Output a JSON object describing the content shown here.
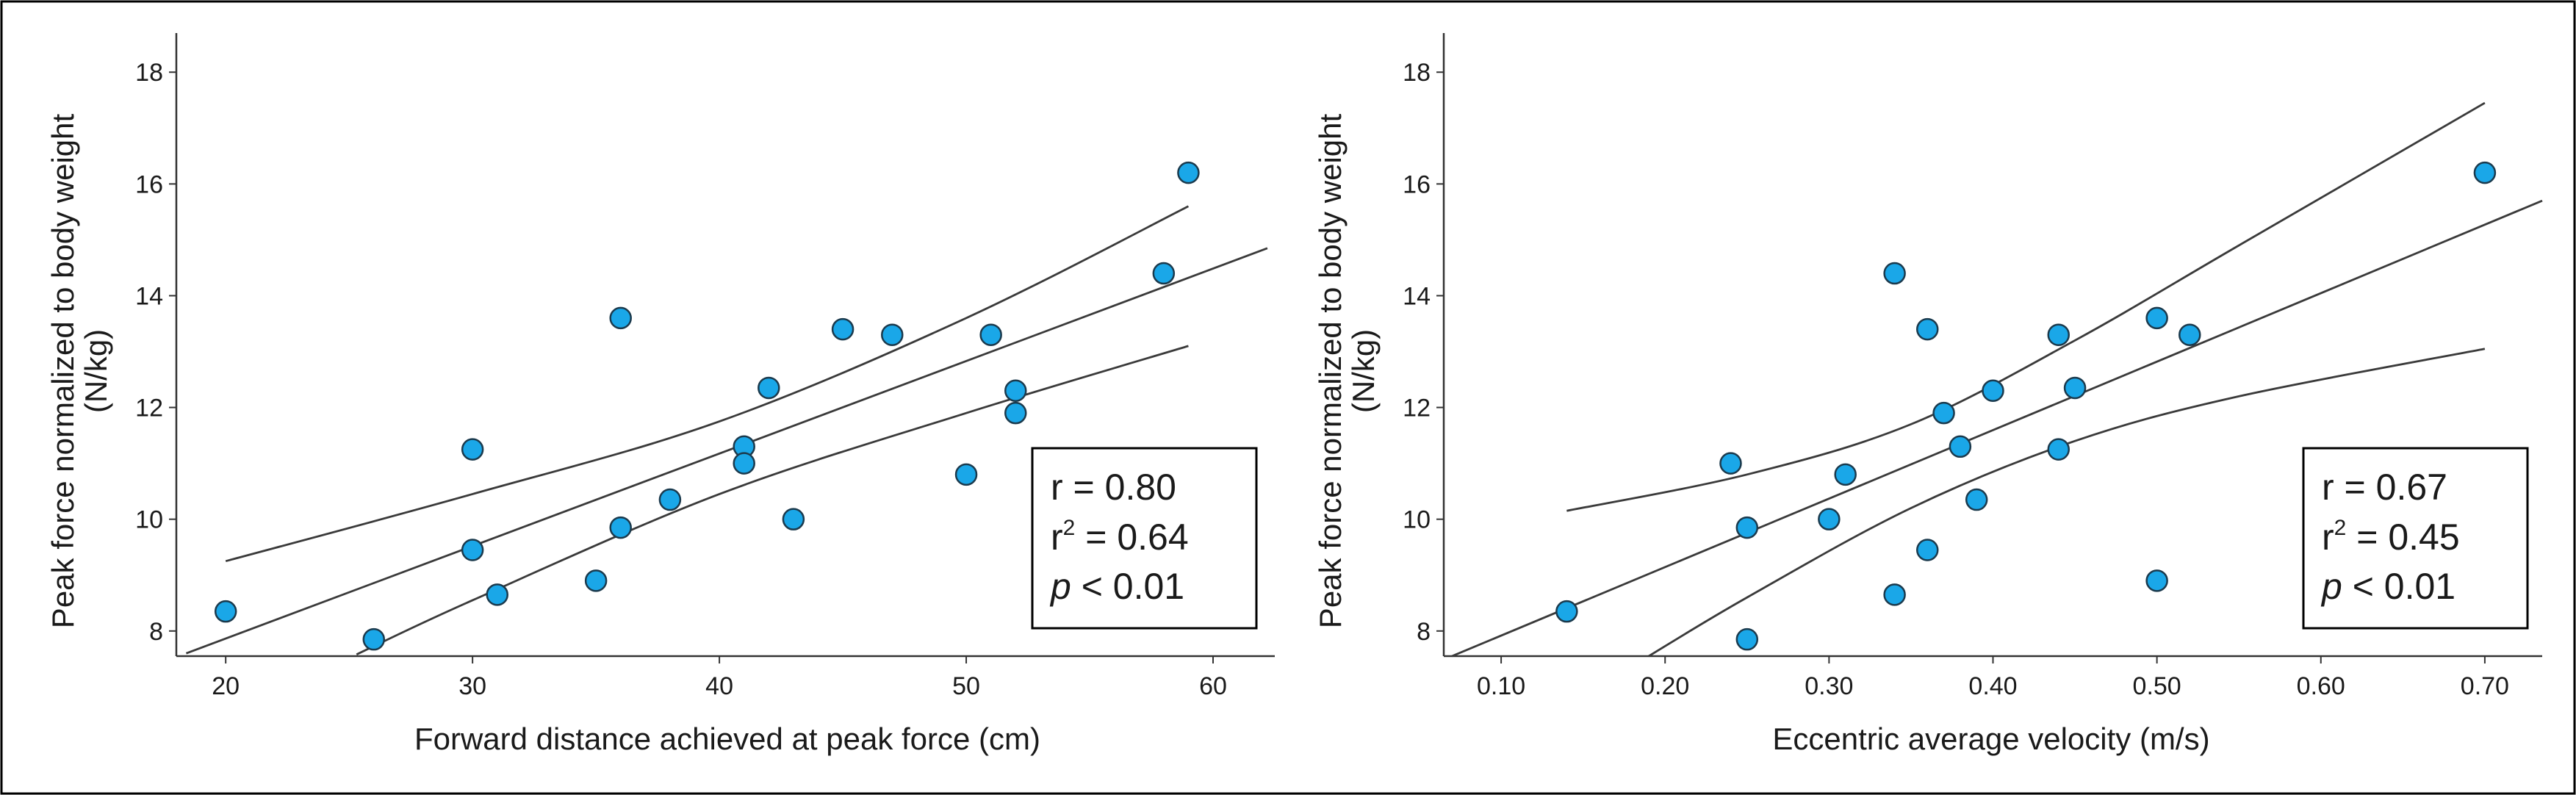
{
  "chart_data": [
    {
      "type": "scatter",
      "xlabel": "Forward distance achieved at peak force (cm)",
      "ylabel": [
        "Peak force normalized to body weight",
        "(N/kg)"
      ],
      "xlim": [
        18,
        62.5
      ],
      "ylim": [
        7.55,
        18.7
      ],
      "xticks": [
        20,
        30,
        40,
        50,
        60
      ],
      "xtick_labels": [
        "20",
        "30",
        "40",
        "50",
        "60"
      ],
      "yticks": [
        8,
        10,
        12,
        14,
        16,
        18
      ],
      "ytick_labels": [
        "8",
        "10",
        "12",
        "14",
        "16",
        "18"
      ],
      "points": [
        {
          "x": 20,
          "y": 8.35
        },
        {
          "x": 26,
          "y": 7.85
        },
        {
          "x": 30,
          "y": 11.25
        },
        {
          "x": 30,
          "y": 9.45
        },
        {
          "x": 31,
          "y": 8.65
        },
        {
          "x": 35,
          "y": 8.9
        },
        {
          "x": 36,
          "y": 13.6
        },
        {
          "x": 36,
          "y": 9.85
        },
        {
          "x": 38,
          "y": 10.35
        },
        {
          "x": 41,
          "y": 11.3
        },
        {
          "x": 41,
          "y": 11.0
        },
        {
          "x": 42,
          "y": 12.35
        },
        {
          "x": 43,
          "y": 10.0
        },
        {
          "x": 45,
          "y": 13.4
        },
        {
          "x": 47,
          "y": 13.3
        },
        {
          "x": 50,
          "y": 10.8
        },
        {
          "x": 51,
          "y": 13.3
        },
        {
          "x": 52,
          "y": 12.3
        },
        {
          "x": 52,
          "y": 11.9
        },
        {
          "x": 58,
          "y": 14.4
        },
        {
          "x": 59,
          "y": 16.2
        }
      ],
      "fit_line": [
        [
          18.4,
          7.6
        ],
        [
          62.2,
          14.85
        ]
      ],
      "ci_upper": [
        [
          20,
          9.25
        ],
        [
          30,
          10.45
        ],
        [
          40,
          11.75
        ],
        [
          50,
          13.6
        ],
        [
          59,
          15.6
        ]
      ],
      "ci_lower": [
        [
          25.3,
          7.58
        ],
        [
          30,
          8.55
        ],
        [
          40,
          10.45
        ],
        [
          50,
          11.9
        ],
        [
          59,
          13.1
        ]
      ],
      "stats": {
        "r": "r = 0.80",
        "r2_prefix": "r",
        "r2_exp": "2",
        "r2_value": " = 0.64",
        "p_italic": "p",
        "p_value": " < 0.01"
      }
    },
    {
      "type": "scatter",
      "xlabel": "Eccentric average velocity (m/s)",
      "ylabel": [
        "Peak force normalized to body weight",
        "(N/kg)"
      ],
      "xlim": [
        0.065,
        0.735
      ],
      "ylim": [
        7.55,
        18.7
      ],
      "xticks": [
        0.1,
        0.2,
        0.3,
        0.4,
        0.5,
        0.6,
        0.7
      ],
      "xtick_labels": [
        "0.10",
        "0.20",
        "0.30",
        "0.40",
        "0.50",
        "0.60",
        "0.70"
      ],
      "yticks": [
        8,
        10,
        12,
        14,
        16,
        18
      ],
      "ytick_labels": [
        "8",
        "10",
        "12",
        "14",
        "16",
        "18"
      ],
      "points": [
        {
          "x": 0.14,
          "y": 8.35
        },
        {
          "x": 0.24,
          "y": 11.0
        },
        {
          "x": 0.25,
          "y": 9.85
        },
        {
          "x": 0.25,
          "y": 7.85
        },
        {
          "x": 0.3,
          "y": 10.0
        },
        {
          "x": 0.31,
          "y": 10.8
        },
        {
          "x": 0.34,
          "y": 14.4
        },
        {
          "x": 0.34,
          "y": 8.65
        },
        {
          "x": 0.36,
          "y": 13.4
        },
        {
          "x": 0.36,
          "y": 9.45
        },
        {
          "x": 0.37,
          "y": 11.9
        },
        {
          "x": 0.38,
          "y": 11.3
        },
        {
          "x": 0.39,
          "y": 10.35
        },
        {
          "x": 0.4,
          "y": 12.3
        },
        {
          "x": 0.44,
          "y": 13.3
        },
        {
          "x": 0.44,
          "y": 11.25
        },
        {
          "x": 0.45,
          "y": 12.35
        },
        {
          "x": 0.5,
          "y": 13.6
        },
        {
          "x": 0.5,
          "y": 8.9
        },
        {
          "x": 0.52,
          "y": 13.3
        },
        {
          "x": 0.7,
          "y": 16.2
        }
      ],
      "fit_line": [
        [
          0.07,
          7.55
        ],
        [
          0.735,
          15.7
        ]
      ],
      "ci_upper": [
        [
          0.14,
          10.15
        ],
        [
          0.25,
          10.8
        ],
        [
          0.35,
          11.7
        ],
        [
          0.45,
          13.2
        ],
        [
          0.55,
          14.9
        ],
        [
          0.7,
          17.45
        ]
      ],
      "ci_lower": [
        [
          0.19,
          7.55
        ],
        [
          0.25,
          8.6
        ],
        [
          0.35,
          10.2
        ],
        [
          0.45,
          11.4
        ],
        [
          0.55,
          12.2
        ],
        [
          0.7,
          13.05
        ]
      ],
      "stats": {
        "r": "r = 0.67",
        "r2_prefix": "r",
        "r2_exp": "2",
        "r2_value": " = 0.45",
        "p_italic": "p",
        "p_value": " < 0.01"
      }
    }
  ],
  "colors": {
    "marker_fill": "#1aa7e8",
    "marker_stroke": "#1b3a4d",
    "line": "#3a3a3a",
    "axis": "#333333",
    "frame": "#000000"
  }
}
